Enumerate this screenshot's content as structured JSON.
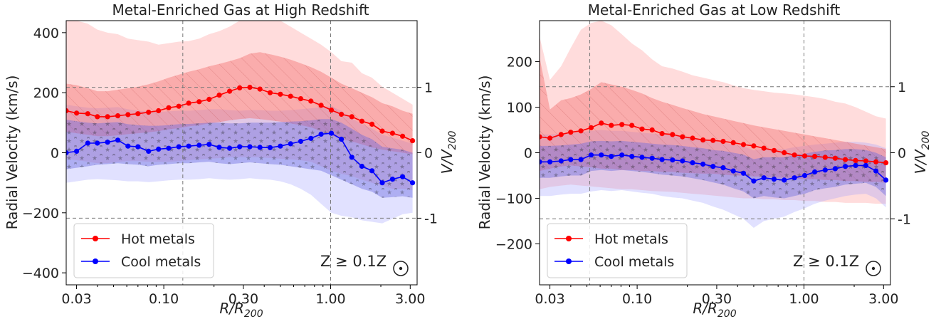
{
  "chart_data": [
    {
      "type": "line",
      "title": "Metal-Enriched Gas at High Redshift",
      "xlabel": "R/R200",
      "ylabel": "Radial Velocity (km/s)",
      "ylabel_right": "V/V200",
      "xscale": "log",
      "xlim": [
        0.026,
        3.3
      ],
      "ylim": [
        -440,
        440
      ],
      "xticks": [
        0.03,
        0.1,
        0.3,
        1.0,
        3.0
      ],
      "xtick_labels": [
        "0.03",
        "0.10",
        "0.30",
        "1.00",
        "3.00"
      ],
      "yticks": [
        -400,
        -200,
        0,
        200,
        400
      ],
      "ytick_labels": [
        "−400",
        "−200",
        "0",
        "200",
        "400"
      ],
      "right_ticks": [
        {
          "value": 218,
          "label": "1"
        },
        {
          "value": 0,
          "label": "0"
        },
        {
          "value": -218,
          "label": "-1"
        }
      ],
      "vlines": [
        0.13,
        1.0
      ],
      "hlines": [
        218,
        -218
      ],
      "legend_location": "lower left",
      "annotation": "Z ≥ 0.1Z",
      "series": [
        {
          "name": "Hot metals",
          "color": "#ff0000",
          "x": [
            0.026,
            0.03,
            0.035,
            0.04,
            0.046,
            0.053,
            0.061,
            0.07,
            0.081,
            0.093,
            0.107,
            0.123,
            0.141,
            0.163,
            0.187,
            0.215,
            0.248,
            0.285,
            0.328,
            0.377,
            0.434,
            0.5,
            0.575,
            0.662,
            0.762,
            0.877,
            1.01,
            1.16,
            1.34,
            1.54,
            1.77,
            2.04,
            2.35,
            2.7,
            3.1
          ],
          "values": [
            140,
            132,
            130,
            120,
            120,
            123,
            127,
            130,
            135,
            140,
            150,
            155,
            165,
            170,
            178,
            192,
            205,
            216,
            218,
            212,
            200,
            195,
            188,
            180,
            172,
            158,
            142,
            128,
            120,
            105,
            95,
            72,
            65,
            55,
            40
          ],
          "band_inner": {
            "upper": [
              230,
              225,
              215,
              205,
              205,
              210,
              215,
              220,
              228,
              238,
              250,
              260,
              270,
              278,
              288,
              296,
              305,
              315,
              330,
              335,
              328,
              320,
              310,
              298,
              285,
              270,
              250,
              230,
              215,
              200,
              185,
              165,
              155,
              140,
              130
            ],
            "lower": [
              70,
              65,
              60,
              55,
              55,
              58,
              62,
              65,
              68,
              72,
              78,
              82,
              88,
              92,
              98,
              102,
              108,
              112,
              115,
              112,
              108,
              104,
              98,
              92,
              85,
              72,
              58,
              45,
              38,
              28,
              18,
              10,
              5,
              0,
              -5
            ]
          },
          "band_outer": {
            "upper": [
              445,
              440,
              430,
              410,
              400,
              395,
              380,
              375,
              370,
              360,
              365,
              370,
              372,
              380,
              395,
              405,
              420,
              440,
              455,
              460,
              455,
              440,
              420,
              400,
              380,
              360,
              335,
              305,
              300,
              265,
              250,
              220,
              200,
              180,
              160
            ],
            "lower": [
              -20,
              -25,
              -30,
              -35,
              -35,
              -30,
              -28,
              -28,
              -30,
              -30,
              -30,
              -28,
              -25,
              -22,
              -20,
              -18,
              -15,
              -15,
              -15,
              -15,
              -18,
              -20,
              -22,
              -25,
              -30,
              -45,
              -60,
              -70,
              -78,
              -90,
              -100,
              -110,
              -120,
              -120,
              -125
            ]
          }
        },
        {
          "name": "Cool metals",
          "color": "#0000ff",
          "x": [
            0.026,
            0.03,
            0.035,
            0.04,
            0.046,
            0.053,
            0.061,
            0.07,
            0.081,
            0.093,
            0.107,
            0.123,
            0.141,
            0.163,
            0.187,
            0.215,
            0.248,
            0.285,
            0.328,
            0.377,
            0.434,
            0.5,
            0.575,
            0.662,
            0.762,
            0.877,
            1.01,
            1.16,
            1.34,
            1.54,
            1.77,
            2.04,
            2.35,
            2.7,
            3.1
          ],
          "values": [
            0,
            5,
            32,
            32,
            35,
            42,
            22,
            20,
            5,
            12,
            15,
            20,
            22,
            25,
            28,
            18,
            15,
            20,
            20,
            18,
            17,
            22,
            30,
            38,
            48,
            62,
            65,
            45,
            -15,
            -45,
            -60,
            -100,
            -88,
            -80,
            -100
          ],
          "band_inner": {
            "upper": [
              110,
              105,
              100,
              98,
              100,
              102,
              95,
              92,
              90,
              90,
              92,
              95,
              96,
              98,
              100,
              100,
              98,
              98,
              100,
              100,
              100,
              102,
              104,
              105,
              108,
              112,
              112,
              100,
              80,
              60,
              45,
              20,
              15,
              10,
              0
            ],
            "lower": [
              -55,
              -50,
              -45,
              -40,
              -38,
              -35,
              -38,
              -40,
              -45,
              -40,
              -38,
              -35,
              -35,
              -32,
              -30,
              -35,
              -38,
              -35,
              -32,
              -35,
              -38,
              -40,
              -45,
              -50,
              -55,
              -60,
              -75,
              -90,
              -105,
              -120,
              -130,
              -150,
              -148,
              -145,
              -150
            ]
          },
          "band_outer": {
            "upper": [
              160,
              155,
              150,
              148,
              150,
              152,
              145,
              140,
              138,
              136,
              138,
              140,
              140,
              142,
              145,
              145,
              142,
              140,
              142,
              142,
              140,
              140,
              142,
              145,
              148,
              152,
              155,
              140,
              115,
              95,
              80,
              60,
              50,
              40,
              30
            ],
            "lower": [
              -100,
              -95,
              -90,
              -88,
              -90,
              -92,
              -95,
              -95,
              -98,
              -95,
              -92,
              -90,
              -90,
              -88,
              -85,
              -88,
              -90,
              -88,
              -85,
              -88,
              -90,
              -95,
              -105,
              -120,
              -140,
              -170,
              -200,
              -210,
              -215,
              -225,
              -230,
              -235,
              -220,
              -205,
              -200
            ]
          }
        }
      ]
    },
    {
      "type": "line",
      "title": "Metal-Enriched Gas at Low Redshift",
      "xlabel": "R/R200",
      "ylabel": "Radial Velocity (km/s)",
      "ylabel_right": "V/V200",
      "xscale": "log",
      "xlim": [
        0.026,
        3.3
      ],
      "ylim": [
        -290,
        290
      ],
      "xticks": [
        0.03,
        0.1,
        0.3,
        1.0,
        3.0
      ],
      "xtick_labels": [
        "0.03",
        "0.10",
        "0.30",
        "1.00",
        "3.00"
      ],
      "yticks": [
        -200,
        -100,
        0,
        100,
        200
      ],
      "ytick_labels": [
        "−200",
        "−100",
        "0",
        "100",
        "200"
      ],
      "right_ticks": [
        {
          "value": 145,
          "label": "1"
        },
        {
          "value": 0,
          "label": "0"
        },
        {
          "value": -145,
          "label": "-1"
        }
      ],
      "vlines": [
        0.052,
        1.0
      ],
      "hlines": [
        145,
        -145
      ],
      "legend_location": "lower left",
      "annotation": "Z ≥ 0.1Z",
      "series": [
        {
          "name": "Hot metals",
          "color": "#ff0000",
          "x": [
            0.026,
            0.03,
            0.035,
            0.04,
            0.046,
            0.053,
            0.061,
            0.07,
            0.081,
            0.093,
            0.107,
            0.123,
            0.141,
            0.163,
            0.187,
            0.215,
            0.248,
            0.285,
            0.328,
            0.377,
            0.434,
            0.5,
            0.575,
            0.662,
            0.762,
            0.877,
            1.01,
            1.16,
            1.34,
            1.54,
            1.77,
            2.04,
            2.35,
            2.7,
            3.1
          ],
          "values": [
            35,
            32,
            40,
            45,
            48,
            55,
            65,
            60,
            62,
            60,
            52,
            50,
            42,
            40,
            35,
            32,
            28,
            27,
            25,
            22,
            18,
            15,
            10,
            5,
            0,
            -5,
            -7,
            -8,
            -10,
            -12,
            -15,
            -17,
            -18,
            -20,
            -22
          ],
          "band_inner": {
            "upper": [
              210,
              95,
              115,
              120,
              128,
              140,
              155,
              150,
              145,
              138,
              130,
              120,
              112,
              105,
              98,
              92,
              85,
              80,
              75,
              70,
              65,
              60,
              56,
              52,
              48,
              44,
              40,
              36,
              32,
              28,
              24,
              20,
              16,
              12,
              8
            ],
            "lower": [
              -40,
              -35,
              -30,
              -28,
              -30,
              -32,
              -35,
              -35,
              -38,
              -38,
              -40,
              -40,
              -42,
              -42,
              -44,
              -45,
              -46,
              -46,
              -48,
              -50,
              -50,
              -52,
              -52,
              -54,
              -55,
              -56,
              -58,
              -58,
              -60,
              -60,
              -62,
              -62,
              -64,
              -64,
              -66
            ]
          },
          "band_outer": {
            "upper": [
              255,
              160,
              190,
              230,
              270,
              285,
              290,
              280,
              260,
              240,
              225,
              205,
              190,
              185,
              178,
              170,
              165,
              160,
              155,
              148,
              142,
              138,
              135,
              132,
              130,
              128,
              125,
              122,
              118,
              112,
              108,
              100,
              90,
              80,
              75
            ],
            "lower": [
              -80,
              -75,
              -72,
              -70,
              -72,
              -74,
              -76,
              -78,
              -80,
              -80,
              -82,
              -84,
              -85,
              -86,
              -88,
              -90,
              -92,
              -94,
              -96,
              -98,
              -100,
              -100,
              -102,
              -102,
              -104,
              -104,
              -106,
              -106,
              -108,
              -108,
              -110,
              -110,
              -110,
              -112,
              -112
            ]
          }
        },
        {
          "name": "Cool metals",
          "color": "#0000ff",
          "x": [
            0.026,
            0.03,
            0.035,
            0.04,
            0.046,
            0.053,
            0.061,
            0.07,
            0.081,
            0.093,
            0.107,
            0.123,
            0.141,
            0.163,
            0.187,
            0.215,
            0.248,
            0.285,
            0.328,
            0.377,
            0.434,
            0.5,
            0.575,
            0.662,
            0.762,
            0.877,
            1.01,
            1.16,
            1.34,
            1.54,
            1.77,
            2.04,
            2.35,
            2.7,
            3.1
          ],
          "values": [
            -20,
            -20,
            -18,
            -15,
            -15,
            -5,
            -5,
            -8,
            -5,
            -8,
            -10,
            -12,
            -15,
            -16,
            -18,
            -22,
            -25,
            -30,
            -33,
            -40,
            -45,
            -62,
            -55,
            -58,
            -60,
            -55,
            -50,
            -42,
            -38,
            -35,
            -30,
            -28,
            -28,
            -40,
            -60
          ],
          "band_inner": {
            "upper": [
              15,
              15,
              16,
              18,
              20,
              25,
              26,
              25,
              26,
              24,
              22,
              20,
              18,
              17,
              15,
              12,
              10,
              6,
              4,
              0,
              -4,
              -14,
              -10,
              -10,
              -10,
              -5,
              -2,
              2,
              5,
              6,
              8,
              8,
              6,
              0,
              -10
            ],
            "lower": [
              -55,
              -55,
              -52,
              -50,
              -50,
              -40,
              -38,
              -40,
              -38,
              -40,
              -42,
              -45,
              -48,
              -50,
              -52,
              -56,
              -60,
              -65,
              -70,
              -78,
              -85,
              -100,
              -95,
              -98,
              -100,
              -95,
              -90,
              -82,
              -78,
              -75,
              -70,
              -68,
              -66,
              -75,
              -95
            ]
          },
          "band_outer": {
            "upper": [
              40,
              40,
              42,
              44,
              45,
              48,
              50,
              48,
              48,
              46,
              44,
              42,
              40,
              38,
              36,
              32,
              30,
              26,
              22,
              18,
              14,
              5,
              8,
              8,
              8,
              12,
              15,
              18,
              20,
              22,
              24,
              24,
              22,
              18,
              10
            ],
            "lower": [
              -95,
              -95,
              -92,
              -90,
              -90,
              -85,
              -82,
              -84,
              -82,
              -85,
              -88,
              -90,
              -95,
              -98,
              -100,
              -105,
              -110,
              -118,
              -125,
              -135,
              -145,
              -165,
              -150,
              -145,
              -140,
              -130,
              -122,
              -112,
              -105,
              -100,
              -95,
              -92,
              -90,
              -100,
              -120
            ]
          }
        }
      ]
    }
  ]
}
